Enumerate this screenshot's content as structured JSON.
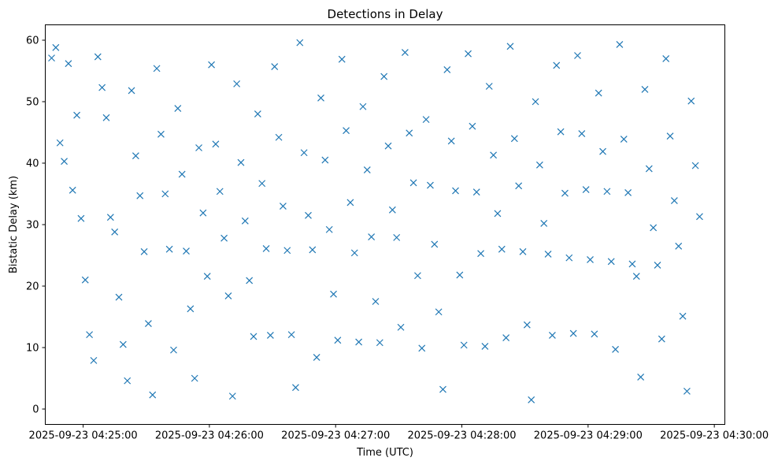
{
  "chart_data": {
    "type": "scatter",
    "title": "Detections in Delay",
    "xlabel": "Time (UTC)",
    "ylabel": "Bistatic Delay (km)",
    "x_ticks": [
      "2025-09-23 04:25:00",
      "2025-09-23 04:26:00",
      "2025-09-23 04:27:00",
      "2025-09-23 04:28:00",
      "2025-09-23 04:29:00",
      "2025-09-23 04:30:00"
    ],
    "y_ticks": [
      "0",
      "10",
      "20",
      "30",
      "40",
      "50",
      "60"
    ],
    "xlim": [
      "2025-09-23 04:24:42",
      "2025-09-23 04:30:05"
    ],
    "ylim": [
      -2.5,
      62.5
    ],
    "grid": false,
    "marker": "x",
    "color": "#1f77b4",
    "points": [
      [
        "2025-09-23 04:24:45",
        57.1
      ],
      [
        "2025-09-23 04:24:47",
        58.8
      ],
      [
        "2025-09-23 04:24:49",
        43.3
      ],
      [
        "2025-09-23 04:24:51",
        40.3
      ],
      [
        "2025-09-23 04:24:53",
        56.2
      ],
      [
        "2025-09-23 04:24:55",
        35.6
      ],
      [
        "2025-09-23 04:24:57",
        47.8
      ],
      [
        "2025-09-23 04:24:59",
        31.0
      ],
      [
        "2025-09-23 04:25:01",
        21.0
      ],
      [
        "2025-09-23 04:25:03",
        12.1
      ],
      [
        "2025-09-23 04:25:05",
        7.9
      ],
      [
        "2025-09-23 04:25:07",
        57.3
      ],
      [
        "2025-09-23 04:25:09",
        52.3
      ],
      [
        "2025-09-23 04:25:11",
        47.4
      ],
      [
        "2025-09-23 04:25:13",
        31.2
      ],
      [
        "2025-09-23 04:25:15",
        28.8
      ],
      [
        "2025-09-23 04:25:17",
        18.2
      ],
      [
        "2025-09-23 04:25:19",
        10.5
      ],
      [
        "2025-09-23 04:25:21",
        4.6
      ],
      [
        "2025-09-23 04:25:23",
        51.8
      ],
      [
        "2025-09-23 04:25:25",
        41.2
      ],
      [
        "2025-09-23 04:25:27",
        34.7
      ],
      [
        "2025-09-23 04:25:29",
        25.6
      ],
      [
        "2025-09-23 04:25:31",
        13.9
      ],
      [
        "2025-09-23 04:25:33",
        2.3
      ],
      [
        "2025-09-23 04:25:35",
        55.4
      ],
      [
        "2025-09-23 04:25:37",
        44.7
      ],
      [
        "2025-09-23 04:25:39",
        35.0
      ],
      [
        "2025-09-23 04:25:41",
        26.0
      ],
      [
        "2025-09-23 04:25:43",
        9.6
      ],
      [
        "2025-09-23 04:25:45",
        48.9
      ],
      [
        "2025-09-23 04:25:47",
        38.2
      ],
      [
        "2025-09-23 04:25:49",
        25.7
      ],
      [
        "2025-09-23 04:25:51",
        16.3
      ],
      [
        "2025-09-23 04:25:53",
        5.0
      ],
      [
        "2025-09-23 04:25:55",
        42.5
      ],
      [
        "2025-09-23 04:25:57",
        31.9
      ],
      [
        "2025-09-23 04:25:59",
        21.6
      ],
      [
        "2025-09-23 04:26:01",
        56.0
      ],
      [
        "2025-09-23 04:26:03",
        43.1
      ],
      [
        "2025-09-23 04:26:05",
        35.4
      ],
      [
        "2025-09-23 04:26:07",
        27.8
      ],
      [
        "2025-09-23 04:26:09",
        18.4
      ],
      [
        "2025-09-23 04:26:11",
        2.1
      ],
      [
        "2025-09-23 04:26:13",
        52.9
      ],
      [
        "2025-09-23 04:26:15",
        40.1
      ],
      [
        "2025-09-23 04:26:17",
        30.6
      ],
      [
        "2025-09-23 04:26:19",
        20.9
      ],
      [
        "2025-09-23 04:26:21",
        11.8
      ],
      [
        "2025-09-23 04:26:23",
        48.0
      ],
      [
        "2025-09-23 04:26:25",
        36.7
      ],
      [
        "2025-09-23 04:26:27",
        26.1
      ],
      [
        "2025-09-23 04:26:29",
        12.0
      ],
      [
        "2025-09-23 04:26:31",
        55.7
      ],
      [
        "2025-09-23 04:26:33",
        44.2
      ],
      [
        "2025-09-23 04:26:35",
        33.0
      ],
      [
        "2025-09-23 04:26:37",
        25.8
      ],
      [
        "2025-09-23 04:26:39",
        12.1
      ],
      [
        "2025-09-23 04:26:41",
        3.5
      ],
      [
        "2025-09-23 04:26:43",
        59.6
      ],
      [
        "2025-09-23 04:26:45",
        41.7
      ],
      [
        "2025-09-23 04:26:47",
        31.5
      ],
      [
        "2025-09-23 04:26:49",
        25.9
      ],
      [
        "2025-09-23 04:26:51",
        8.4
      ],
      [
        "2025-09-23 04:26:53",
        50.6
      ],
      [
        "2025-09-23 04:26:55",
        40.5
      ],
      [
        "2025-09-23 04:26:57",
        29.2
      ],
      [
        "2025-09-23 04:26:59",
        18.7
      ],
      [
        "2025-09-23 04:27:01",
        11.2
      ],
      [
        "2025-09-23 04:27:03",
        56.9
      ],
      [
        "2025-09-23 04:27:05",
        45.3
      ],
      [
        "2025-09-23 04:27:07",
        33.6
      ],
      [
        "2025-09-23 04:27:09",
        25.4
      ],
      [
        "2025-09-23 04:27:11",
        10.9
      ],
      [
        "2025-09-23 04:27:13",
        49.2
      ],
      [
        "2025-09-23 04:27:15",
        38.9
      ],
      [
        "2025-09-23 04:27:17",
        28.0
      ],
      [
        "2025-09-23 04:27:19",
        17.5
      ],
      [
        "2025-09-23 04:27:21",
        10.8
      ],
      [
        "2025-09-23 04:27:23",
        54.1
      ],
      [
        "2025-09-23 04:27:25",
        42.8
      ],
      [
        "2025-09-23 04:27:27",
        32.4
      ],
      [
        "2025-09-23 04:27:29",
        27.9
      ],
      [
        "2025-09-23 04:27:31",
        13.3
      ],
      [
        "2025-09-23 04:27:33",
        58.0
      ],
      [
        "2025-09-23 04:27:35",
        44.9
      ],
      [
        "2025-09-23 04:27:37",
        36.8
      ],
      [
        "2025-09-23 04:27:39",
        21.7
      ],
      [
        "2025-09-23 04:27:41",
        9.9
      ],
      [
        "2025-09-23 04:27:43",
        47.1
      ],
      [
        "2025-09-23 04:27:45",
        36.4
      ],
      [
        "2025-09-23 04:27:47",
        26.8
      ],
      [
        "2025-09-23 04:27:49",
        15.8
      ],
      [
        "2025-09-23 04:27:51",
        3.2
      ],
      [
        "2025-09-23 04:27:53",
        55.2
      ],
      [
        "2025-09-23 04:27:55",
        43.6
      ],
      [
        "2025-09-23 04:27:57",
        35.5
      ],
      [
        "2025-09-23 04:27:59",
        21.8
      ],
      [
        "2025-09-23 04:28:01",
        10.4
      ],
      [
        "2025-09-23 04:28:03",
        57.8
      ],
      [
        "2025-09-23 04:28:05",
        46.0
      ],
      [
        "2025-09-23 04:28:07",
        35.3
      ],
      [
        "2025-09-23 04:28:09",
        25.3
      ],
      [
        "2025-09-23 04:28:11",
        10.2
      ],
      [
        "2025-09-23 04:28:13",
        52.5
      ],
      [
        "2025-09-23 04:28:15",
        41.3
      ],
      [
        "2025-09-23 04:28:17",
        31.8
      ],
      [
        "2025-09-23 04:28:19",
        26.0
      ],
      [
        "2025-09-23 04:28:21",
        11.6
      ],
      [
        "2025-09-23 04:28:23",
        59.0
      ],
      [
        "2025-09-23 04:28:25",
        44.0
      ],
      [
        "2025-09-23 04:28:27",
        36.3
      ],
      [
        "2025-09-23 04:28:29",
        25.6
      ],
      [
        "2025-09-23 04:28:31",
        13.7
      ],
      [
        "2025-09-23 04:28:33",
        1.5
      ],
      [
        "2025-09-23 04:28:35",
        50.0
      ],
      [
        "2025-09-23 04:28:37",
        39.7
      ],
      [
        "2025-09-23 04:28:39",
        30.2
      ],
      [
        "2025-09-23 04:28:41",
        25.2
      ],
      [
        "2025-09-23 04:28:43",
        12.0
      ],
      [
        "2025-09-23 04:28:45",
        55.9
      ],
      [
        "2025-09-23 04:28:47",
        45.1
      ],
      [
        "2025-09-23 04:28:49",
        35.1
      ],
      [
        "2025-09-23 04:28:51",
        24.6
      ],
      [
        "2025-09-23 04:28:53",
        12.3
      ],
      [
        "2025-09-23 04:28:55",
        57.5
      ],
      [
        "2025-09-23 04:28:57",
        44.8
      ],
      [
        "2025-09-23 04:28:59",
        35.7
      ],
      [
        "2025-09-23 04:29:01",
        24.3
      ],
      [
        "2025-09-23 04:29:03",
        12.2
      ],
      [
        "2025-09-23 04:29:05",
        51.4
      ],
      [
        "2025-09-23 04:29:07",
        41.9
      ],
      [
        "2025-09-23 04:29:09",
        35.4
      ],
      [
        "2025-09-23 04:29:11",
        24.0
      ],
      [
        "2025-09-23 04:29:13",
        9.7
      ],
      [
        "2025-09-23 04:29:15",
        59.3
      ],
      [
        "2025-09-23 04:29:17",
        43.9
      ],
      [
        "2025-09-23 04:29:19",
        35.2
      ],
      [
        "2025-09-23 04:29:21",
        23.6
      ],
      [
        "2025-09-23 04:29:23",
        21.6
      ],
      [
        "2025-09-23 04:29:25",
        5.2
      ],
      [
        "2025-09-23 04:29:27",
        52.0
      ],
      [
        "2025-09-23 04:29:29",
        39.1
      ],
      [
        "2025-09-23 04:29:31",
        29.5
      ],
      [
        "2025-09-23 04:29:33",
        23.4
      ],
      [
        "2025-09-23 04:29:35",
        11.4
      ],
      [
        "2025-09-23 04:29:37",
        57.0
      ],
      [
        "2025-09-23 04:29:39",
        44.4
      ],
      [
        "2025-09-23 04:29:41",
        33.9
      ],
      [
        "2025-09-23 04:29:43",
        26.5
      ],
      [
        "2025-09-23 04:29:45",
        15.1
      ],
      [
        "2025-09-23 04:29:47",
        2.9
      ],
      [
        "2025-09-23 04:29:49",
        50.1
      ],
      [
        "2025-09-23 04:29:51",
        39.6
      ],
      [
        "2025-09-23 04:29:53",
        31.3
      ]
    ]
  }
}
